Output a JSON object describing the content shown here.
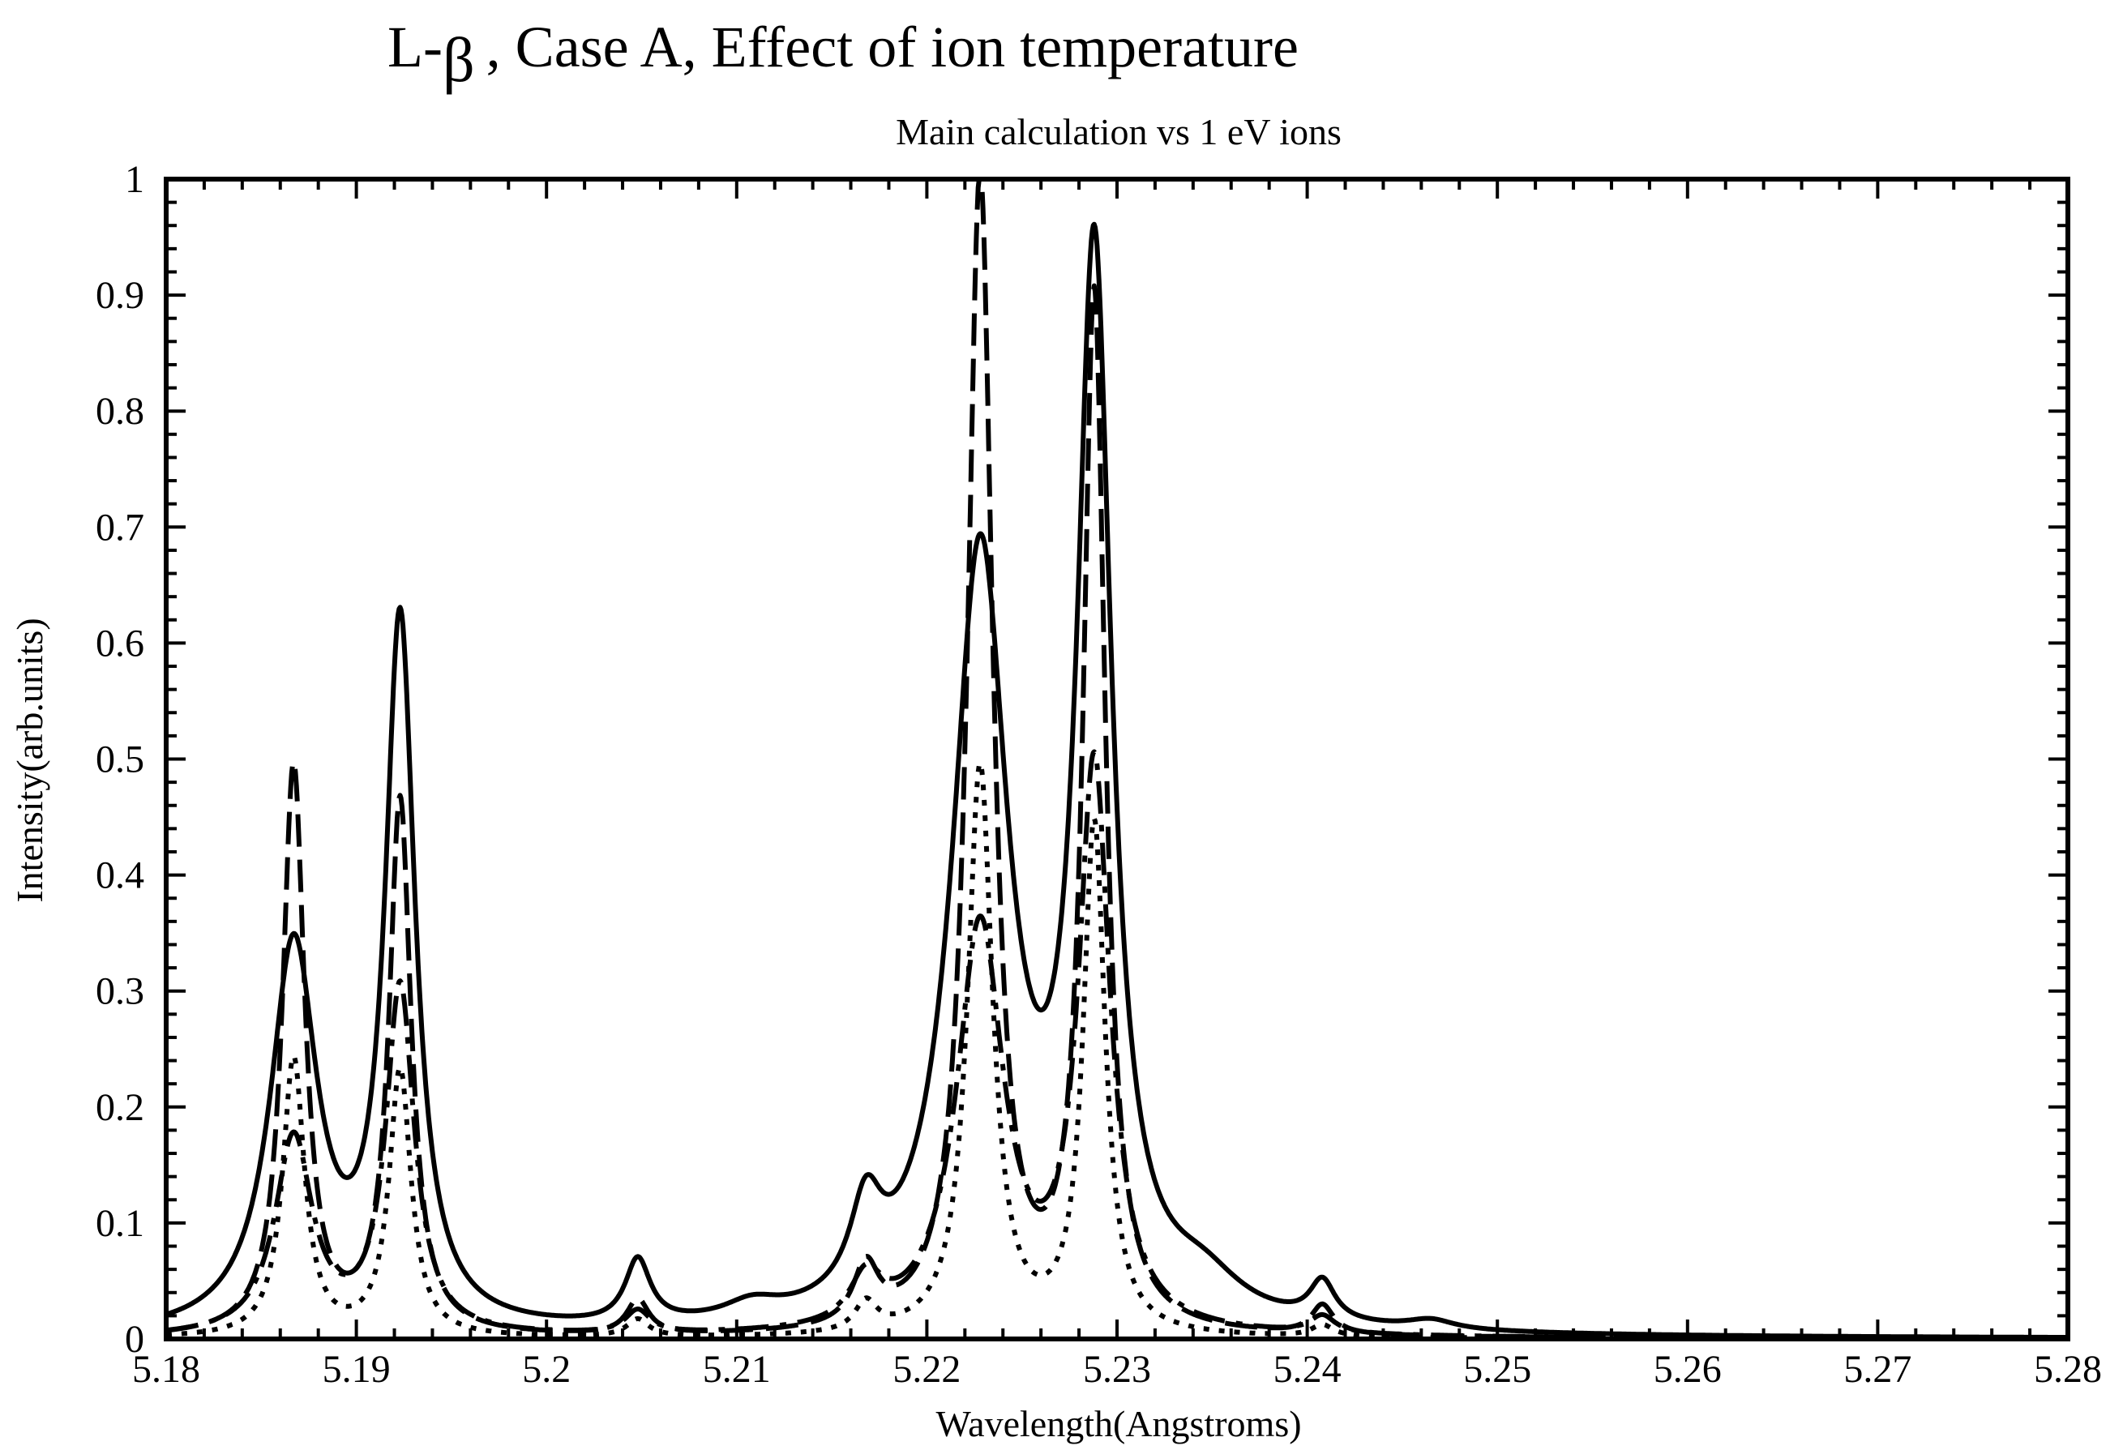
{
  "chart_data": {
    "type": "line",
    "title_prefix": "L-",
    "title_symbol": "β",
    "title_suffix": ", Case A, Effect of ion temperature",
    "subtitle": "Main calculation vs 1 eV ions",
    "xlabel": "Wavelength(Angstroms)",
    "ylabel": "Intensity(arb.units)",
    "xlim": [
      5.18,
      5.28
    ],
    "ylim": [
      0,
      1
    ],
    "x_ticks": [
      5.18,
      5.19,
      5.2,
      5.21,
      5.22,
      5.23,
      5.24,
      5.25,
      5.26,
      5.27,
      5.28
    ],
    "x_tick_labels": [
      "5.18",
      "5.19",
      "5.2",
      "5.21",
      "5.22",
      "5.23",
      "5.24",
      "5.25",
      "5.26",
      "5.27",
      "5.28"
    ],
    "y_ticks": [
      0,
      0.1,
      0.2,
      0.3,
      0.4,
      0.5,
      0.6,
      0.7,
      0.8,
      0.9,
      1
    ],
    "y_tick_labels": [
      "0",
      "0.1",
      "0.2",
      "0.3",
      "0.4",
      "0.5",
      "0.6",
      "0.7",
      "0.8",
      "0.9",
      "1"
    ],
    "grid": false,
    "legend": "none",
    "series": [
      {
        "name": "solid",
        "style": "solid",
        "peaks": [
          {
            "c": 5.1867,
            "a": 0.33,
            "w": 0.0015
          },
          {
            "c": 5.1923,
            "a": 0.605,
            "w": 0.00095
          },
          {
            "c": 5.2048,
            "a": 0.055,
            "w": 0.0008
          },
          {
            "c": 5.2108,
            "a": 0.014,
            "w": 0.0018
          },
          {
            "c": 5.2168,
            "a": 0.075,
            "w": 0.001
          },
          {
            "c": 5.2228,
            "a": 0.66,
            "w": 0.0018
          },
          {
            "c": 5.2288,
            "a": 0.9,
            "w": 0.0011
          },
          {
            "c": 5.2345,
            "a": 0.03,
            "w": 0.0025
          },
          {
            "c": 5.2408,
            "a": 0.034,
            "w": 0.0008
          },
          {
            "c": 5.2465,
            "a": 0.008,
            "w": 0.0015
          }
        ]
      },
      {
        "name": "dashed",
        "style": "dashed",
        "peaks": [
          {
            "c": 5.1867,
            "a": 0.49,
            "w": 0.0007
          },
          {
            "c": 5.1923,
            "a": 0.46,
            "w": 0.0007
          },
          {
            "c": 5.2048,
            "a": 0.03,
            "w": 0.0007
          },
          {
            "c": 5.2168,
            "a": 0.05,
            "w": 0.0008
          },
          {
            "c": 5.2228,
            "a": 0.995,
            "w": 0.0008
          },
          {
            "c": 5.2288,
            "a": 0.89,
            "w": 0.0007
          },
          {
            "c": 5.2408,
            "a": 0.025,
            "w": 0.0007
          }
        ]
      },
      {
        "name": "dash-dot",
        "style": "dashdot",
        "peaks": [
          {
            "c": 5.1867,
            "a": 0.17,
            "w": 0.0012
          },
          {
            "c": 5.1923,
            "a": 0.3,
            "w": 0.0009
          },
          {
            "c": 5.2048,
            "a": 0.02,
            "w": 0.0008
          },
          {
            "c": 5.2168,
            "a": 0.04,
            "w": 0.001
          },
          {
            "c": 5.2228,
            "a": 0.35,
            "w": 0.0015
          },
          {
            "c": 5.2288,
            "a": 0.485,
            "w": 0.001
          },
          {
            "c": 5.2408,
            "a": 0.015,
            "w": 0.0008
          }
        ]
      },
      {
        "name": "dotted",
        "style": "dotted",
        "peaks": [
          {
            "c": 5.1867,
            "a": 0.24,
            "w": 0.0007
          },
          {
            "c": 5.1923,
            "a": 0.23,
            "w": 0.0007
          },
          {
            "c": 5.2048,
            "a": 0.015,
            "w": 0.0007
          },
          {
            "c": 5.2168,
            "a": 0.025,
            "w": 0.0007
          },
          {
            "c": 5.2228,
            "a": 0.49,
            "w": 0.0008
          },
          {
            "c": 5.2288,
            "a": 0.44,
            "w": 0.0007
          },
          {
            "c": 5.2408,
            "a": 0.01,
            "w": 0.0007
          }
        ]
      }
    ]
  }
}
